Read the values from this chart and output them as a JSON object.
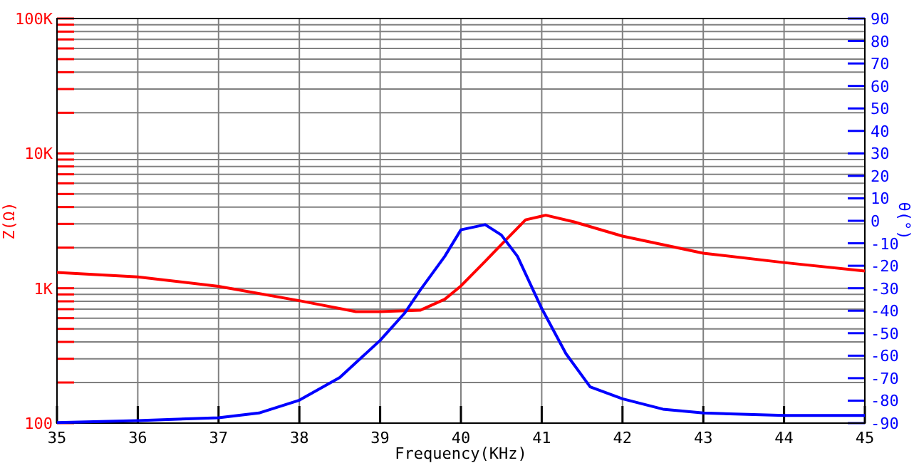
{
  "chart_data": {
    "type": "line",
    "xlabel": "Frequency(KHz)",
    "ylabel": "Z(Ω)",
    "y2label": "θ(°)",
    "xlim": [
      35,
      45
    ],
    "xticks": [
      35,
      36,
      37,
      38,
      39,
      40,
      41,
      42,
      43,
      44,
      45
    ],
    "log": "y",
    "ylim": [
      100,
      100000
    ],
    "yticks": [
      {
        "value": 100,
        "label": "100"
      },
      {
        "value": 200,
        "label": null
      },
      {
        "value": 300,
        "label": null
      },
      {
        "value": 400,
        "label": null
      },
      {
        "value": 500,
        "label": null
      },
      {
        "value": 600,
        "label": null
      },
      {
        "value": 700,
        "label": null
      },
      {
        "value": 800,
        "label": null
      },
      {
        "value": 900,
        "label": null
      },
      {
        "value": 1000,
        "label": "1K"
      },
      {
        "value": 2000,
        "label": null
      },
      {
        "value": 3000,
        "label": null
      },
      {
        "value": 4000,
        "label": null
      },
      {
        "value": 5000,
        "label": null
      },
      {
        "value": 6000,
        "label": null
      },
      {
        "value": 7000,
        "label": null
      },
      {
        "value": 8000,
        "label": null
      },
      {
        "value": 9000,
        "label": null
      },
      {
        "value": 10000,
        "label": "10K"
      },
      {
        "value": 20000,
        "label": null
      },
      {
        "value": 30000,
        "label": null
      },
      {
        "value": 40000,
        "label": null
      },
      {
        "value": 50000,
        "label": null
      },
      {
        "value": 60000,
        "label": null
      },
      {
        "value": 70000,
        "label": null
      },
      {
        "value": 80000,
        "label": null
      },
      {
        "value": 90000,
        "label": null
      },
      {
        "value": 100000,
        "label": "100K"
      }
    ],
    "y2lim": [
      -90,
      90
    ],
    "y2ticks": [
      -90,
      -80,
      -70,
      -60,
      -50,
      -40,
      -30,
      -20,
      -10,
      0,
      10,
      20,
      30,
      40,
      50,
      60,
      70,
      80,
      90
    ],
    "grid": true,
    "series": [
      {
        "color": "#ff0000",
        "x": [
          35,
          36,
          37,
          38,
          38.7,
          39,
          39.5,
          39.8,
          40,
          40.3,
          40.5,
          40.8,
          41.05,
          41.4,
          42,
          43,
          44,
          45
        ],
        "values": [
          1310,
          1215,
          1032,
          809,
          671,
          671,
          688,
          829,
          1040,
          1585,
          2105,
          3214,
          3480,
          3105,
          2436,
          1820,
          1550,
          1340
        ]
      },
      {
        "color": "#0000ff",
        "axis": "y2",
        "x": [
          35,
          36,
          37,
          37.5,
          38,
          38.5,
          39,
          39.3,
          39.5,
          39.8,
          40,
          40.3,
          40.5,
          40.7,
          41,
          41.3,
          41.6,
          42,
          42.5,
          43,
          44,
          45
        ],
        "values": [
          -89.8,
          -88.9,
          -87.6,
          -85.5,
          -79.8,
          -69.7,
          -53.2,
          -41.2,
          -30.6,
          -15.8,
          -4,
          -1.7,
          -6.3,
          -15.8,
          -39,
          -59.1,
          -73.9,
          -79.2,
          -83.8,
          -85.5,
          -86.6,
          -86.6
        ]
      }
    ]
  }
}
